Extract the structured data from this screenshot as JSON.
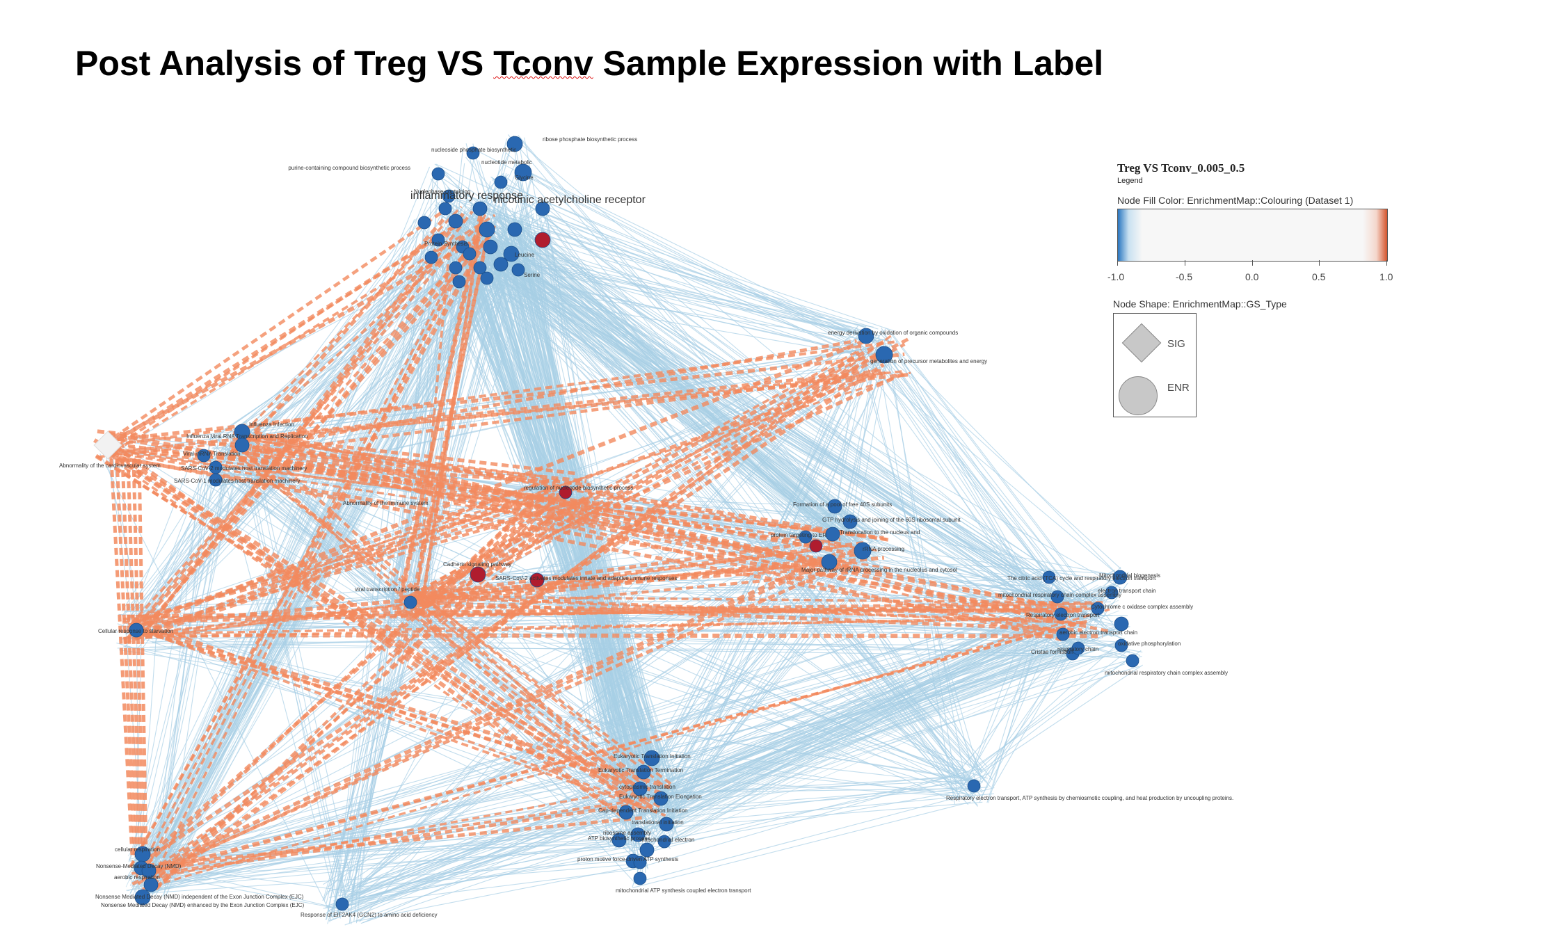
{
  "page": {
    "title_main": "Post Analysis of Treg VS ",
    "title_underlined": "Tconv",
    "title_rest": " Sample Expression with Label"
  },
  "legend": {
    "title": "Treg VS Tconv_0.005_0.5",
    "subtitle": "Legend",
    "fill_color_label": "Node Fill Color:  EnrichmentMap::Colouring (Dataset 1)",
    "ticks": [
      "-1.0",
      "-0.5",
      "0.0",
      "0.5",
      "1.0"
    ],
    "shape_label": "Node Shape:  EnrichmentMap::GS_Type",
    "sig_label": "SIG",
    "enr_label": "ENR",
    "gradient_colors": [
      "#2a76c0",
      "#f7f7f7",
      "#d4542c"
    ]
  },
  "colors": {
    "node_blue": "#2a68b1",
    "node_red": "#b01c2e",
    "edge_blue": "#a8cfe6",
    "edge_orange": "#f28a5e"
  },
  "network": {
    "labels": [
      "ribose phosphate biosynthetic process",
      "nucleoside phosphate biosynthetic",
      "nucleotide metabolic",
      "purine-containing compound biosynthetic process",
      "Nucleobase-containing",
      "Glycine",
      "inflammatory response",
      "nicotinic acetylcholine receptor",
      "Protein Synthesis",
      "Leucine",
      "Serine",
      "energy derivation by oxidation of organic compounds",
      "generation of precursor metabolites and energy",
      "Abnormality of the cardiovascular system",
      "Influenza Infection",
      "Influenza Viral RNA Transcription and Replication",
      "Viral mRNA Translation",
      "SARS-CoV-2 modulates host translation machinery",
      "SARS-CoV-1 modulates host translation machinery",
      "regulation of nucleotide biosynthetic process",
      "Abnormality of the immune system",
      "Formation of a pool of free 40S subunits",
      "GTP hydrolysis and joining of the 60S ribosomal subunit",
      "protein targeting to ER",
      "Translocation to the nucleus and",
      "rRNA processing",
      "Major pathway of rRNA processing in the nucleolus and cytosol",
      "Cadherin signaling pathway",
      "SARS-CoV-2 activates modulates innate and adaptive immune responses",
      "viral transcription / peptide",
      "Cellular response to starvation",
      "The citric acid (TCA) cycle and respiratory electron transport",
      "mitochondrial respiratory chain complex assembly",
      "Respiratory electron transport",
      "aerobic electron transport chain",
      "Cristae formation",
      "Mitochondrial biogenesis",
      "electron transport chain",
      "Cytochrome c oxidase complex assembly",
      "oxidative phosphorylation",
      "respiratory chain",
      "mitochondrial respiratory chain complex assembly",
      "Eukaryotic Translation Initiation",
      "Eukaryotic Translation Termination",
      "cytoplasmic translation",
      "Eukaryotic Translation Elongation",
      "Cap-dependent Translation Initiation",
      "translational initiation",
      "ribosome assembly",
      "mitochondrial electron",
      "ATP biosynthetic process",
      "proton motive force-driven ATP synthesis",
      "mitochondrial ATP synthesis coupled electron transport",
      "Respiratory electron transport, ATP synthesis by chemiosmotic coupling, and heat production by uncoupling proteins.",
      "cellular respiration",
      "Nonsense-Mediated Decay (NMD)",
      "aerobic respiration",
      "Nonsense Mediated Decay (NMD) independent of the Exon Junction Complex (EJC)",
      "Nonsense Mediated Decay (NMD) enhanced by the Exon Junction Complex (EJC)",
      "Response of EIF2AK4 (GCN2) to amino acid deficiency"
    ]
  }
}
